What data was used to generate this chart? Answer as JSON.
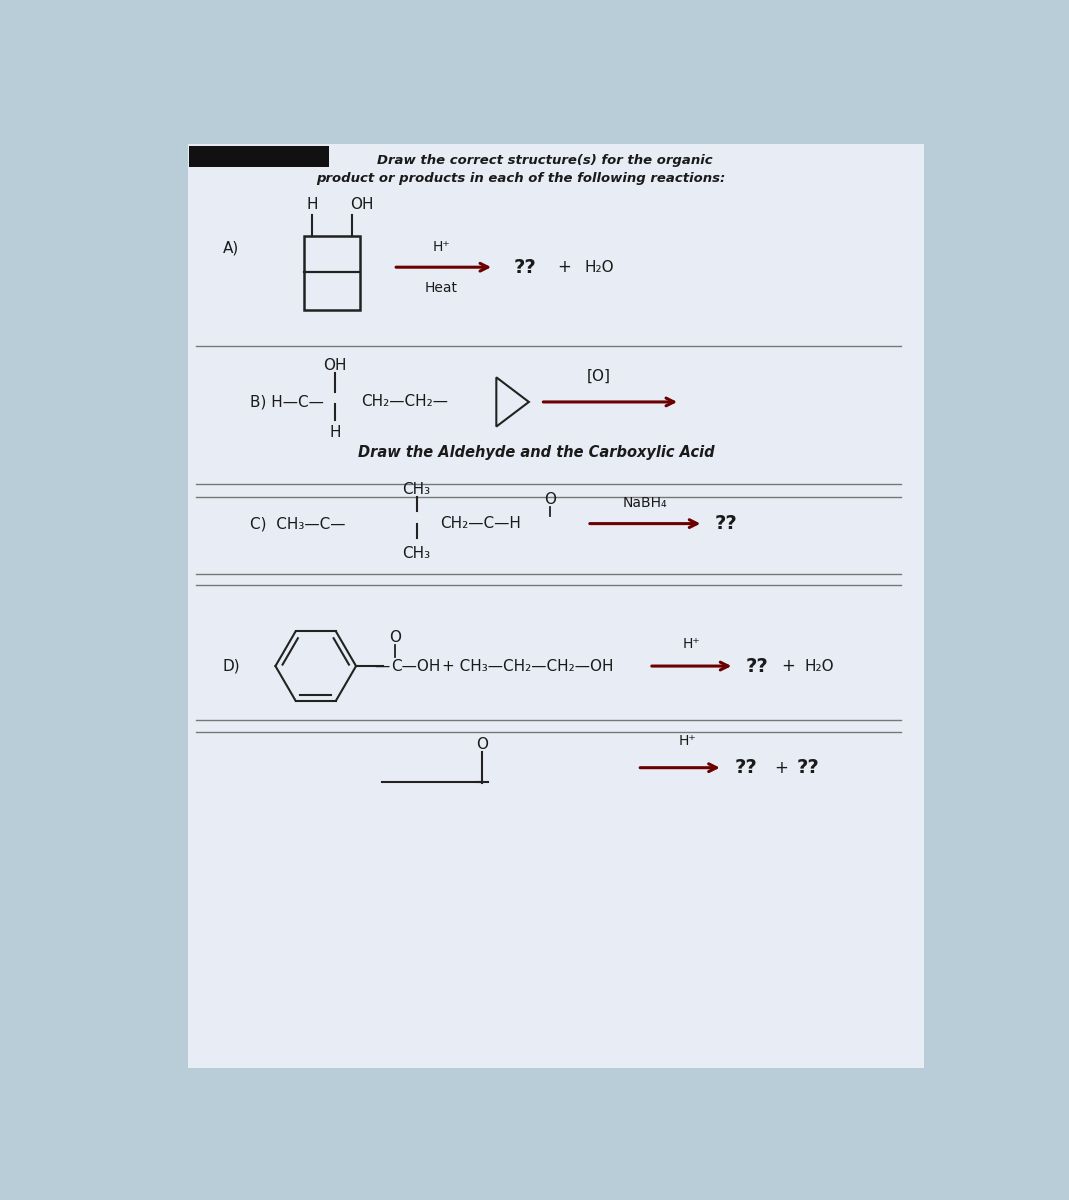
{
  "bg_color": "#b8cdd8",
  "paper_color": "#e8edf5",
  "arrow_color": "#6b0000",
  "text_color": "#1a1a1a",
  "line_color": "#222222",
  "sep_color": "#777777",
  "title1": "Draw the correct structure(s) for the organic",
  "title2": "product or products in each of the following reactions:",
  "note_B": "Draw the Aldehyde and the Carboxylic Acid"
}
